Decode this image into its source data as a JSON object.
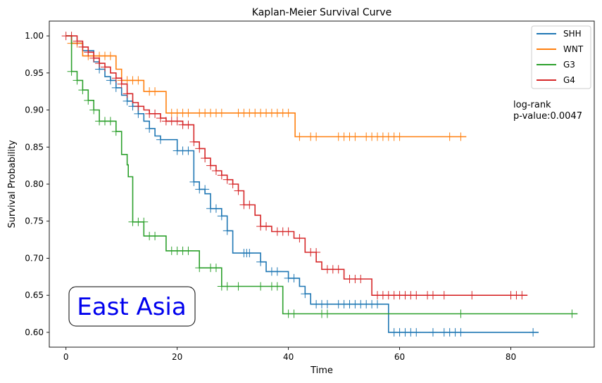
{
  "chart_data": {
    "type": "line",
    "title": "Kaplan-Meier Survival Curve",
    "xlabel": "Time",
    "ylabel": "Survival Probability",
    "xlim": [
      -3,
      95
    ],
    "ylim": [
      0.58,
      1.02
    ],
    "x_ticks": [
      0,
      20,
      40,
      60,
      80
    ],
    "y_ticks": [
      0.6,
      0.65,
      0.7,
      0.75,
      0.8,
      0.85,
      0.9,
      0.95,
      1.0
    ],
    "grid": false,
    "legend_position": "top-right",
    "annotation": [
      "log-rank",
      "p-value:0.0047"
    ],
    "inset_label": "East Asia",
    "series": [
      {
        "name": "SHH",
        "color": "#1f77b4",
        "steps": [
          [
            0,
            1.0
          ],
          [
            1,
            0.99
          ],
          [
            3,
            0.98
          ],
          [
            5,
            0.965
          ],
          [
            6,
            0.955
          ],
          [
            7,
            0.945
          ],
          [
            8,
            0.94
          ],
          [
            9,
            0.93
          ],
          [
            10,
            0.92
          ],
          [
            11,
            0.912
          ],
          [
            12,
            0.905
          ],
          [
            13,
            0.895
          ],
          [
            14,
            0.885
          ],
          [
            15,
            0.875
          ],
          [
            16,
            0.865
          ],
          [
            17,
            0.86
          ],
          [
            20,
            0.845
          ],
          [
            23,
            0.803
          ],
          [
            24,
            0.793
          ],
          [
            25,
            0.787
          ],
          [
            26,
            0.767
          ],
          [
            28,
            0.757
          ],
          [
            29,
            0.737
          ],
          [
            30,
            0.707
          ],
          [
            35,
            0.695
          ],
          [
            36,
            0.682
          ],
          [
            40,
            0.673
          ],
          [
            42,
            0.662
          ],
          [
            43,
            0.652
          ],
          [
            44,
            0.638
          ],
          [
            58,
            0.6
          ],
          [
            85,
            0.6
          ]
        ],
        "censored": [
          [
            2,
            0.99
          ],
          [
            4,
            0.98
          ],
          [
            6,
            0.955
          ],
          [
            8,
            0.94
          ],
          [
            9,
            0.93
          ],
          [
            11,
            0.912
          ],
          [
            12,
            0.905
          ],
          [
            13,
            0.895
          ],
          [
            15,
            0.875
          ],
          [
            17,
            0.86
          ],
          [
            20,
            0.845
          ],
          [
            21,
            0.845
          ],
          [
            22,
            0.845
          ],
          [
            23,
            0.803
          ],
          [
            24,
            0.793
          ],
          [
            25,
            0.793
          ],
          [
            26,
            0.767
          ],
          [
            27,
            0.767
          ],
          [
            28,
            0.757
          ],
          [
            29,
            0.737
          ],
          [
            32,
            0.707
          ],
          [
            32.5,
            0.707
          ],
          [
            33,
            0.707
          ],
          [
            35,
            0.695
          ],
          [
            37,
            0.682
          ],
          [
            38,
            0.682
          ],
          [
            40,
            0.673
          ],
          [
            41,
            0.673
          ],
          [
            43,
            0.652
          ],
          [
            45,
            0.638
          ],
          [
            46,
            0.638
          ],
          [
            47,
            0.638
          ],
          [
            49,
            0.638
          ],
          [
            50,
            0.638
          ],
          [
            51,
            0.638
          ],
          [
            52,
            0.638
          ],
          [
            53,
            0.638
          ],
          [
            54,
            0.638
          ],
          [
            55,
            0.638
          ],
          [
            56,
            0.638
          ],
          [
            59,
            0.6
          ],
          [
            60,
            0.6
          ],
          [
            61,
            0.6
          ],
          [
            62,
            0.6
          ],
          [
            63,
            0.6
          ],
          [
            66,
            0.6
          ],
          [
            68,
            0.6
          ],
          [
            69,
            0.6
          ],
          [
            70,
            0.6
          ],
          [
            71,
            0.6
          ],
          [
            84,
            0.6
          ]
        ]
      },
      {
        "name": "WNT",
        "color": "#ff7f0e",
        "steps": [
          [
            0,
            1.0
          ],
          [
            1,
            0.99
          ],
          [
            3,
            0.973
          ],
          [
            9,
            0.955
          ],
          [
            10,
            0.94
          ],
          [
            14,
            0.925
          ],
          [
            18,
            0.896
          ],
          [
            41,
            0.896
          ],
          [
            41.2,
            0.864
          ],
          [
            72,
            0.864
          ]
        ],
        "censored": [
          [
            1,
            0.99
          ],
          [
            2,
            0.99
          ],
          [
            4,
            0.973
          ],
          [
            5,
            0.973
          ],
          [
            6,
            0.973
          ],
          [
            7,
            0.973
          ],
          [
            8,
            0.973
          ],
          [
            10,
            0.94
          ],
          [
            11,
            0.94
          ],
          [
            12,
            0.94
          ],
          [
            13,
            0.94
          ],
          [
            15,
            0.925
          ],
          [
            16,
            0.925
          ],
          [
            19,
            0.896
          ],
          [
            20,
            0.896
          ],
          [
            21,
            0.896
          ],
          [
            22,
            0.896
          ],
          [
            24,
            0.896
          ],
          [
            25,
            0.896
          ],
          [
            26,
            0.896
          ],
          [
            27,
            0.896
          ],
          [
            28,
            0.896
          ],
          [
            31,
            0.896
          ],
          [
            32,
            0.896
          ],
          [
            33,
            0.896
          ],
          [
            34,
            0.896
          ],
          [
            35,
            0.896
          ],
          [
            36,
            0.896
          ],
          [
            37,
            0.896
          ],
          [
            38,
            0.896
          ],
          [
            39,
            0.896
          ],
          [
            40,
            0.896
          ],
          [
            42,
            0.864
          ],
          [
            44,
            0.864
          ],
          [
            45,
            0.864
          ],
          [
            49,
            0.864
          ],
          [
            50,
            0.864
          ],
          [
            51,
            0.864
          ],
          [
            52,
            0.864
          ],
          [
            54,
            0.864
          ],
          [
            55,
            0.864
          ],
          [
            56,
            0.864
          ],
          [
            57,
            0.864
          ],
          [
            58,
            0.864
          ],
          [
            59,
            0.864
          ],
          [
            60,
            0.864
          ],
          [
            69,
            0.864
          ],
          [
            71,
            0.864
          ]
        ]
      },
      {
        "name": "G3",
        "color": "#2ca02c",
        "steps": [
          [
            0,
            1.0
          ],
          [
            1,
            0.952
          ],
          [
            2,
            0.94
          ],
          [
            3,
            0.927
          ],
          [
            4,
            0.913
          ],
          [
            5,
            0.9
          ],
          [
            6,
            0.885
          ],
          [
            9,
            0.871
          ],
          [
            10,
            0.84
          ],
          [
            11,
            0.826
          ],
          [
            11.2,
            0.81
          ],
          [
            12,
            0.749
          ],
          [
            14,
            0.73
          ],
          [
            18,
            0.71
          ],
          [
            24,
            0.687
          ],
          [
            28,
            0.662
          ],
          [
            39,
            0.625
          ],
          [
            92,
            0.625
          ]
        ],
        "censored": [
          [
            1,
            0.952
          ],
          [
            2,
            0.94
          ],
          [
            3,
            0.927
          ],
          [
            4,
            0.913
          ],
          [
            5,
            0.9
          ],
          [
            6,
            0.885
          ],
          [
            7,
            0.885
          ],
          [
            8,
            0.885
          ],
          [
            9,
            0.871
          ],
          [
            12,
            0.749
          ],
          [
            13,
            0.749
          ],
          [
            14,
            0.749
          ],
          [
            15,
            0.73
          ],
          [
            16,
            0.73
          ],
          [
            19,
            0.71
          ],
          [
            20,
            0.71
          ],
          [
            21,
            0.71
          ],
          [
            22,
            0.71
          ],
          [
            24,
            0.687
          ],
          [
            26,
            0.687
          ],
          [
            27,
            0.687
          ],
          [
            28,
            0.662
          ],
          [
            29,
            0.662
          ],
          [
            31,
            0.662
          ],
          [
            35,
            0.662
          ],
          [
            37,
            0.662
          ],
          [
            38,
            0.662
          ],
          [
            40,
            0.625
          ],
          [
            41,
            0.625
          ],
          [
            46,
            0.625
          ],
          [
            47,
            0.625
          ],
          [
            71,
            0.625
          ],
          [
            91,
            0.625
          ]
        ]
      },
      {
        "name": "G4",
        "color": "#d62728",
        "steps": [
          [
            0,
            1.0
          ],
          [
            2,
            0.993
          ],
          [
            3,
            0.985
          ],
          [
            4,
            0.978
          ],
          [
            5,
            0.97
          ],
          [
            6,
            0.963
          ],
          [
            7,
            0.958
          ],
          [
            8,
            0.95
          ],
          [
            9,
            0.943
          ],
          [
            10,
            0.935
          ],
          [
            11,
            0.922
          ],
          [
            12,
            0.91
          ],
          [
            13,
            0.905
          ],
          [
            14,
            0.9
          ],
          [
            15,
            0.895
          ],
          [
            17,
            0.889
          ],
          [
            18,
            0.885
          ],
          [
            21,
            0.88
          ],
          [
            23,
            0.857
          ],
          [
            24,
            0.848
          ],
          [
            25,
            0.835
          ],
          [
            26,
            0.825
          ],
          [
            27,
            0.818
          ],
          [
            28,
            0.812
          ],
          [
            29,
            0.806
          ],
          [
            30,
            0.8
          ],
          [
            31,
            0.791
          ],
          [
            32,
            0.772
          ],
          [
            34,
            0.758
          ],
          [
            35,
            0.743
          ],
          [
            37,
            0.736
          ],
          [
            41,
            0.727
          ],
          [
            43,
            0.708
          ],
          [
            45,
            0.695
          ],
          [
            46,
            0.685
          ],
          [
            50,
            0.672
          ],
          [
            55,
            0.65
          ],
          [
            83,
            0.65
          ]
        ],
        "censored": [
          [
            0,
            1.0
          ],
          [
            1,
            1.0
          ],
          [
            2,
            0.993
          ],
          [
            3,
            0.985
          ],
          [
            4,
            0.978
          ],
          [
            5,
            0.97
          ],
          [
            6,
            0.963
          ],
          [
            7,
            0.958
          ],
          [
            9,
            0.943
          ],
          [
            10,
            0.935
          ],
          [
            11,
            0.922
          ],
          [
            13,
            0.905
          ],
          [
            15,
            0.895
          ],
          [
            16,
            0.895
          ],
          [
            17,
            0.889
          ],
          [
            18,
            0.885
          ],
          [
            19,
            0.885
          ],
          [
            20,
            0.885
          ],
          [
            21,
            0.88
          ],
          [
            22,
            0.88
          ],
          [
            23,
            0.857
          ],
          [
            24,
            0.848
          ],
          [
            25,
            0.835
          ],
          [
            26,
            0.825
          ],
          [
            27,
            0.818
          ],
          [
            28,
            0.812
          ],
          [
            29,
            0.806
          ],
          [
            30,
            0.8
          ],
          [
            31,
            0.791
          ],
          [
            32,
            0.772
          ],
          [
            33,
            0.772
          ],
          [
            35,
            0.743
          ],
          [
            36,
            0.743
          ],
          [
            38,
            0.736
          ],
          [
            39,
            0.736
          ],
          [
            40,
            0.736
          ],
          [
            42,
            0.727
          ],
          [
            44,
            0.708
          ],
          [
            45,
            0.708
          ],
          [
            47,
            0.685
          ],
          [
            48,
            0.685
          ],
          [
            49,
            0.685
          ],
          [
            51,
            0.672
          ],
          [
            52,
            0.672
          ],
          [
            53,
            0.672
          ],
          [
            56,
            0.65
          ],
          [
            57,
            0.65
          ],
          [
            58,
            0.65
          ],
          [
            59,
            0.65
          ],
          [
            60,
            0.65
          ],
          [
            61,
            0.65
          ],
          [
            62,
            0.65
          ],
          [
            63,
            0.65
          ],
          [
            65,
            0.65
          ],
          [
            66,
            0.65
          ],
          [
            68,
            0.65
          ],
          [
            73,
            0.65
          ],
          [
            80,
            0.65
          ],
          [
            81,
            0.65
          ],
          [
            82,
            0.65
          ]
        ]
      }
    ]
  }
}
